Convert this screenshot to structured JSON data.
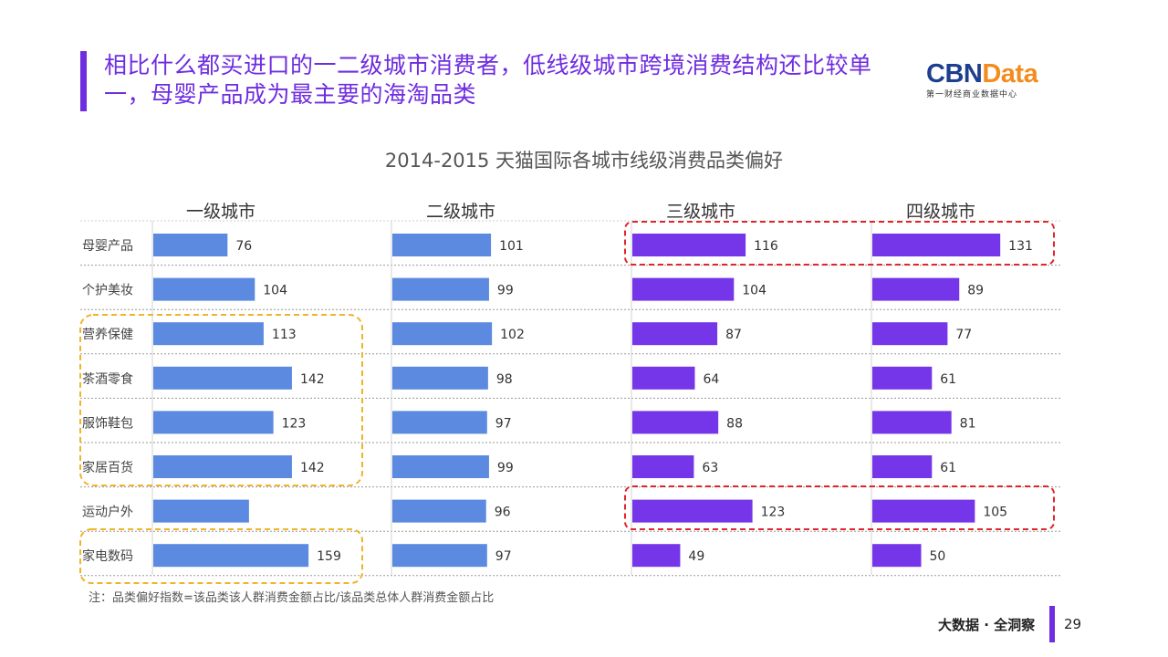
{
  "slide": {
    "headline": "相比什么都买进口的一二级城市消费者，低线级城市跨境消费结构还比较单一，母婴产品成为最主要的海淘品类",
    "logo_main_a": "CBN",
    "logo_main_b": "Data",
    "logo_sub": "第一财经商业数据中心",
    "note": "注：品类偏好指数=该品类该人群消费金额占比/该品类总体人群消费金额占比",
    "footer": "大数据 · 全洞察",
    "page_number": "29"
  },
  "colors": {
    "tier12": "#5b8ae0",
    "tier34": "#7535e8",
    "accent_purple": "#6f2de0",
    "highlight_yellow": "#f0b429",
    "highlight_red": "#e0262b"
  },
  "chart_data": {
    "type": "bar",
    "title": "2014-2015 天猫国际各城市线级消费品类偏好",
    "categories": [
      "母婴产品",
      "个护美妆",
      "营养保健",
      "茶酒零食",
      "服饰鞋包",
      "家居百货",
      "运动户外",
      "家电数码"
    ],
    "series": [
      {
        "name": "一级城市",
        "values": [
          76,
          104,
          113,
          142,
          123,
          142,
          98,
          159
        ],
        "labels": [
          "76",
          "104",
          "113",
          "142",
          "123",
          "142",
          "",
          "159"
        ]
      },
      {
        "name": "二级城市",
        "values": [
          101,
          99,
          102,
          98,
          97,
          99,
          96,
          97
        ],
        "labels": [
          "101",
          "99",
          "102",
          "98",
          "97",
          "99",
          "96",
          "97"
        ]
      },
      {
        "name": "三级城市",
        "values": [
          116,
          104,
          87,
          64,
          88,
          63,
          123,
          49
        ],
        "labels": [
          "116",
          "104",
          "87",
          "64",
          "88",
          "63",
          "123",
          "49"
        ]
      },
      {
        "name": "四级城市",
        "values": [
          131,
          89,
          77,
          61,
          81,
          61,
          105,
          50
        ],
        "labels": [
          "131",
          "89",
          "77",
          "61",
          "81",
          "61",
          "105",
          "50"
        ]
      }
    ],
    "highlights": {
      "yellow": [
        [
          "营养保健",
          "家居百货"
        ],
        [
          "家电数码",
          "家电数码"
        ]
      ],
      "red": [
        [
          "母婴产品"
        ],
        [
          "运动户外"
        ]
      ]
    }
  }
}
